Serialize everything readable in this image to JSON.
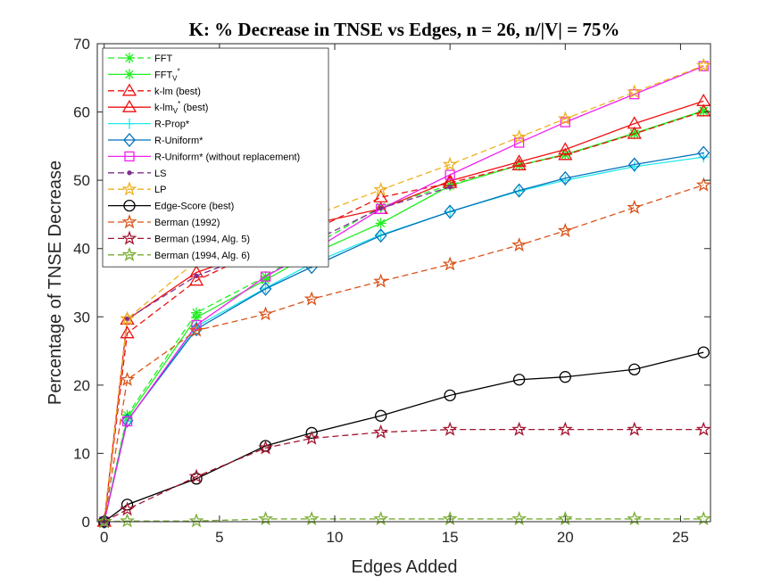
{
  "chart_data": {
    "type": "line",
    "title": "K: % Decrease in TNSE vs Edges, n = 26, n/|V| = 75%",
    "xlabel": "Edges Added",
    "ylabel": "Percentage of TNSE Decrease",
    "xlim": [
      -0.3,
      26.3
    ],
    "ylim": [
      0,
      70
    ],
    "xticks": [
      0,
      5,
      10,
      15,
      20,
      25
    ],
    "yticks": [
      0,
      10,
      20,
      30,
      40,
      50,
      60,
      70
    ],
    "grid": false,
    "legend_position": "top-left",
    "x": [
      0,
      1,
      4,
      7,
      9,
      12,
      15,
      18,
      20,
      23,
      26
    ],
    "series": [
      {
        "name": "FFT",
        "legend_main": "FFT",
        "legend_sub": "",
        "legend_sup": "",
        "color": "#22ee22",
        "dash": "7,4",
        "marker": "asterisk",
        "values": [
          0,
          15.6,
          30.6,
          35.9,
          40.3,
          46.1,
          49.3,
          52.2,
          53.7,
          56.8,
          60.1
        ]
      },
      {
        "name": "FFT_V*",
        "legend_main": "FFT",
        "legend_sub": "V",
        "legend_sup": "*",
        "color": "#22ee22",
        "dash": "",
        "marker": "asterisk",
        "values": [
          0,
          15.2,
          29.9,
          35.4,
          39.2,
          43.7,
          49.2,
          52.2,
          53.8,
          56.9,
          60.2
        ]
      },
      {
        "name": "k-lm (best)",
        "legend_main": "k-lm (best)",
        "legend_sub": "",
        "legend_sup": "",
        "color": "#ee1111",
        "dash": "7,4",
        "marker": "triangle",
        "values": [
          0,
          27.6,
          35.3,
          40.1,
          42.6,
          47.5,
          49.6,
          52.2,
          53.7,
          56.8,
          60.1
        ]
      },
      {
        "name": "k-lm_V* (best)",
        "legend_main": "k-lm",
        "legend_sub": "V",
        "legend_sup": "*",
        "legend_tail": " (best)",
        "color": "#ee1111",
        "dash": "",
        "marker": "triangle",
        "values": [
          0,
          29.6,
          36.5,
          40.0,
          43.6,
          45.8,
          49.9,
          52.7,
          54.5,
          58.3,
          61.6
        ]
      },
      {
        "name": "R-Prop*",
        "legend_main": "R-Prop*",
        "legend_sub": "",
        "legend_sup": "",
        "color": "#22e8e8",
        "dash": "",
        "marker": "plus",
        "values": [
          0,
          14.7,
          28.6,
          34.2,
          37.8,
          42.0,
          45.4,
          48.4,
          50.0,
          52.0,
          53.4
        ]
      },
      {
        "name": "R-Uniform*",
        "legend_main": "R-Uniform*",
        "legend_sub": "",
        "legend_sup": "",
        "color": "#0072bd",
        "dash": "",
        "marker": "diamond",
        "values": [
          0,
          14.8,
          28.2,
          34.1,
          37.3,
          41.9,
          45.4,
          48.5,
          50.3,
          52.3,
          54.0
        ]
      },
      {
        "name": "R-Uniform* (without replacement)",
        "legend_main": "R-Uniform* (without replacement)",
        "legend_sub": "",
        "legend_sup": "",
        "color": "#ee22ee",
        "dash": "",
        "marker": "square",
        "values": [
          0,
          14.7,
          28.8,
          35.9,
          39.6,
          45.8,
          50.8,
          55.5,
          58.5,
          62.6,
          66.7
        ]
      },
      {
        "name": "LS",
        "legend_main": "LS",
        "legend_sub": "",
        "legend_sup": "",
        "color": "#7e2f8e",
        "dash": "7,4",
        "marker": "dot",
        "values": [
          0,
          29.7,
          36.0,
          39.8,
          41.0,
          45.9,
          49.0,
          null,
          null,
          null,
          null
        ]
      },
      {
        "name": "LP",
        "legend_main": "LP",
        "legend_sub": "",
        "legend_sup": "",
        "color": "#edb120",
        "dash": "7,4",
        "marker": "star",
        "values": [
          0,
          29.7,
          38.2,
          42.2,
          44.7,
          48.6,
          52.3,
          56.3,
          59.0,
          62.9,
          66.8
        ]
      },
      {
        "name": "Edge-Score (best)",
        "legend_main": "Edge-Score (best)",
        "legend_sub": "",
        "legend_sup": "",
        "color": "#000000",
        "dash": "",
        "marker": "circle",
        "values": [
          0,
          2.5,
          6.3,
          11.1,
          13.0,
          15.5,
          18.5,
          20.8,
          21.2,
          22.3,
          24.8
        ]
      },
      {
        "name": "Berman (1992)",
        "legend_main": "Berman (1992)",
        "legend_sub": "",
        "legend_sup": "",
        "color": "#d95319",
        "dash": "7,4",
        "marker": "star",
        "values": [
          0,
          20.8,
          28.0,
          30.4,
          32.6,
          35.2,
          37.7,
          40.5,
          42.6,
          46.0,
          49.3
        ]
      },
      {
        "name": "Berman (1994, Alg. 5)",
        "legend_main": "Berman (1994, Alg. 5)",
        "legend_sub": "",
        "legend_sup": "",
        "color": "#a2142f",
        "dash": "7,4",
        "marker": "star",
        "values": [
          0,
          1.8,
          6.6,
          10.8,
          12.2,
          13.1,
          13.5,
          13.5,
          13.5,
          13.5,
          13.5
        ]
      },
      {
        "name": "Berman (1994, Alg. 6)",
        "legend_main": "Berman (1994, Alg. 6)",
        "legend_sub": "",
        "legend_sup": "",
        "color": "#77ac30",
        "dash": "7,4",
        "marker": "star",
        "values": [
          0,
          0.1,
          0.1,
          0.4,
          0.4,
          0.4,
          0.4,
          0.4,
          0.4,
          0.4,
          0.4
        ]
      }
    ]
  }
}
